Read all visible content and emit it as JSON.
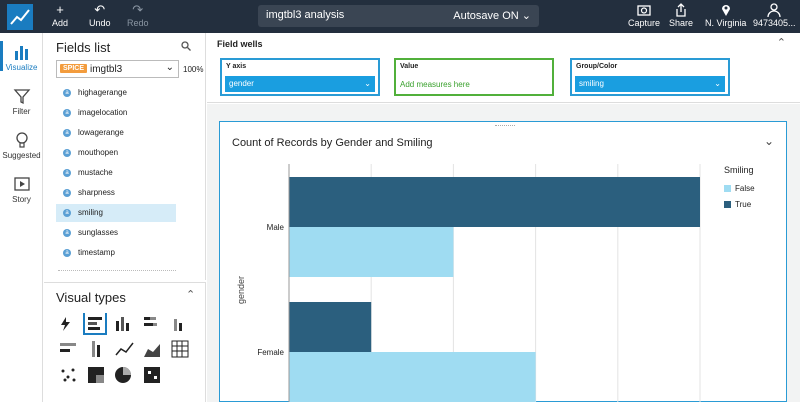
{
  "toolbar": {
    "add_label": "Add",
    "undo_label": "Undo",
    "redo_label": "Redo",
    "analysis_name": "imgtbl3 analysis",
    "autosave_label": "Autosave ON",
    "capture_label": "Capture",
    "share_label": "Share",
    "region_label": "N. Virginia",
    "account_label": "9473405..."
  },
  "rail": {
    "items": [
      {
        "label": "Visualize",
        "icon": "bar-chart-icon"
      },
      {
        "label": "Filter",
        "icon": "funnel-icon"
      },
      {
        "label": "Suggested",
        "icon": "lightbulb-icon"
      },
      {
        "label": "Story",
        "icon": "story-icon"
      }
    ]
  },
  "fields_panel": {
    "title": "Fields list",
    "spice_badge": "SPICE",
    "dataset": "imgtbl3",
    "percent": "100%",
    "fields": [
      "highagerange",
      "imagelocation",
      "lowagerange",
      "mouthopen",
      "mustache",
      "sharpness",
      "smiling",
      "sunglasses",
      "timestamp"
    ],
    "selected_field": "smiling"
  },
  "visual_types": {
    "title": "Visual types"
  },
  "field_wells": {
    "title": "Field wells",
    "y_axis": {
      "label": "Y axis",
      "value": "gender"
    },
    "value": {
      "label": "Value",
      "placeholder": "Add measures here"
    },
    "group": {
      "label": "Group/Color",
      "value": "smiling"
    }
  },
  "visual": {
    "title": "Count of Records by Gender and Smiling"
  },
  "colors": {
    "true": "#2b5f7e",
    "false": "#9fdcf2",
    "accent": "#1a7cc0"
  },
  "chart_data": {
    "type": "bar",
    "orientation": "horizontal",
    "title": "Count of Records by Gender and Smiling",
    "ylabel": "gender",
    "categories": [
      "Male",
      "Female"
    ],
    "legend_title": "Smiling",
    "series": [
      {
        "name": "False",
        "values": [
          2,
          3
        ]
      },
      {
        "name": "True",
        "values": [
          5,
          1
        ]
      }
    ],
    "xlim": [
      0,
      5
    ],
    "grid": true,
    "legend_position": "right"
  }
}
